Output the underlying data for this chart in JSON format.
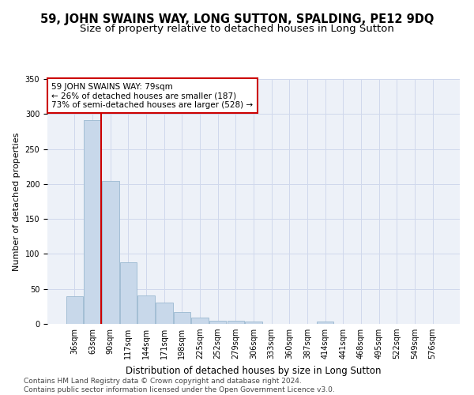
{
  "title1": "59, JOHN SWAINS WAY, LONG SUTTON, SPALDING, PE12 9DQ",
  "title2": "Size of property relative to detached houses in Long Sutton",
  "xlabel": "Distribution of detached houses by size in Long Sutton",
  "ylabel": "Number of detached properties",
  "bar_color": "#c8d8ea",
  "bar_edge_color": "#9ab8d0",
  "categories": [
    "36sqm",
    "63sqm",
    "90sqm",
    "117sqm",
    "144sqm",
    "171sqm",
    "198sqm",
    "225sqm",
    "252sqm",
    "279sqm",
    "306sqm",
    "333sqm",
    "360sqm",
    "387sqm",
    "414sqm",
    "441sqm",
    "468sqm",
    "495sqm",
    "522sqm",
    "549sqm",
    "576sqm"
  ],
  "values": [
    40,
    291,
    204,
    88,
    41,
    30,
    17,
    9,
    5,
    4,
    3,
    0,
    0,
    0,
    3,
    0,
    0,
    0,
    0,
    0,
    0
  ],
  "vline_x": 1.5,
  "vline_color": "#cc0000",
  "annotation_text": "59 JOHN SWAINS WAY: 79sqm\n← 26% of detached houses are smaller (187)\n73% of semi-detached houses are larger (528) →",
  "footer": "Contains HM Land Registry data © Crown copyright and database right 2024.\nContains public sector information licensed under the Open Government Licence v3.0.",
  "ylim": [
    0,
    350
  ],
  "grid_color": "#d0d8ec",
  "background_color": "#edf1f8",
  "title1_fontsize": 10.5,
  "title2_fontsize": 9.5,
  "xlabel_fontsize": 8.5,
  "ylabel_fontsize": 8,
  "tick_fontsize": 7,
  "annot_fontsize": 7.5,
  "footer_fontsize": 6.5
}
